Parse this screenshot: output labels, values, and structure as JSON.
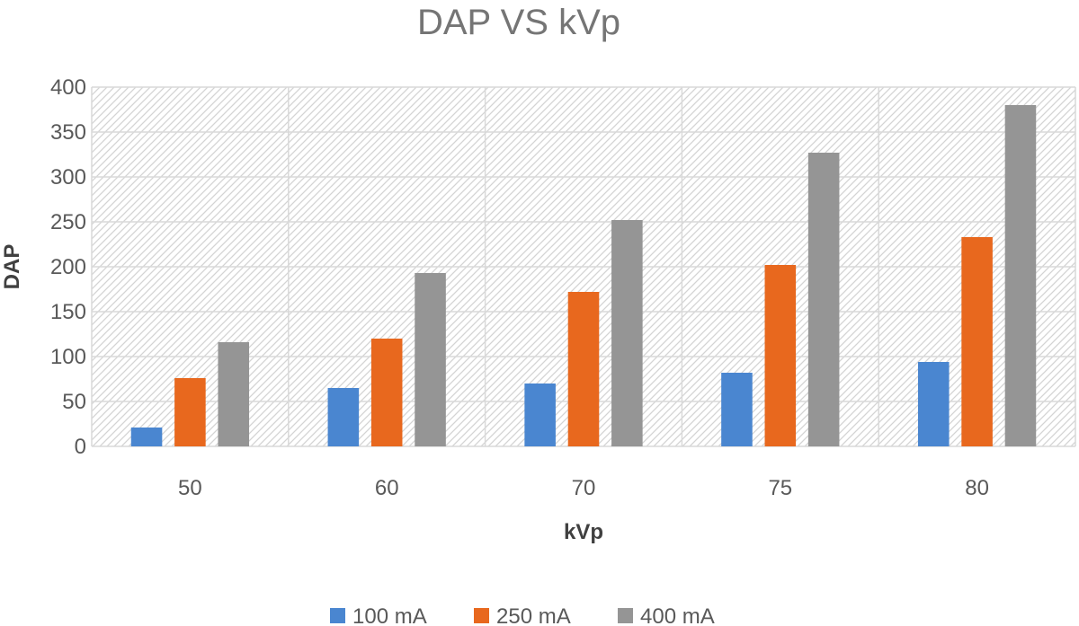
{
  "chart_data": {
    "type": "bar",
    "title": "DAP VS kVp",
    "xlabel": "kVp",
    "ylabel": "DAP",
    "categories": [
      "50",
      "60",
      "70",
      "75",
      "80"
    ],
    "series": [
      {
        "name": "100 mA",
        "color": "#4a86d0",
        "values": [
          21,
          65,
          70,
          82,
          94
        ]
      },
      {
        "name": "250 mA",
        "color": "#e8681e",
        "values": [
          76,
          120,
          172,
          202,
          233
        ]
      },
      {
        "name": "400 mA",
        "color": "#959595",
        "values": [
          116,
          193,
          252,
          327,
          380
        ]
      }
    ],
    "ylim": [
      0,
      400
    ],
    "yticks": [
      "0",
      "50",
      "100",
      "150",
      "200",
      "250",
      "300",
      "350",
      "400"
    ],
    "grid": true,
    "legend_position": "bottom",
    "plot_background": "diagonal-hatch"
  }
}
